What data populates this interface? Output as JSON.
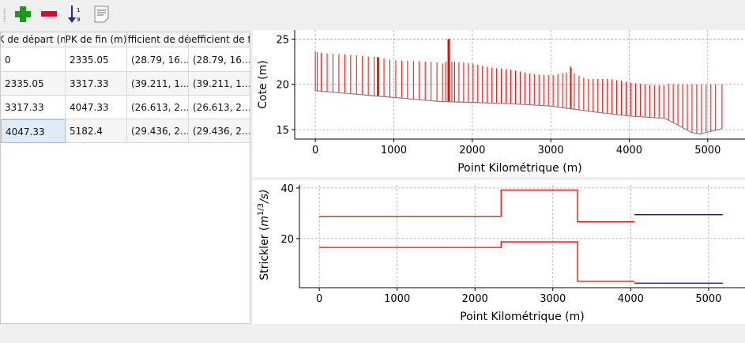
{
  "toolbar": {
    "add_icon": "plus-icon",
    "remove_icon": "minus-icon",
    "sort_icon": "sort-ascending-icon",
    "edit_icon": "document-icon"
  },
  "table": {
    "headers": [
      "PK de départ (m)",
      "PK de fin (m)",
      "Coefficient de début",
      "Coefficient de fin"
    ],
    "rows": [
      [
        "0",
        "2335.05",
        "(28.79, 16…",
        "(28.79, 16…"
      ],
      [
        "2335.05",
        "3317.33",
        "(39.211, 1…",
        "(39.211, 1…"
      ],
      [
        "3317.33",
        "4047.33",
        "(26.613, 2…",
        "(26.613, 2…"
      ],
      [
        "4047.33",
        "5182.4",
        "(29.436, 2…",
        "(29.436, 2…"
      ]
    ],
    "selected_row": 3
  },
  "chart_data": [
    {
      "type": "line",
      "xlabel": "Point Kilométrique (m)",
      "ylabel": "Cote (m)",
      "xlim": [
        -263,
        5475
      ],
      "ylim": [
        13.95,
        26.0
      ],
      "xticks": [
        "0",
        "1000",
        "2000",
        "3000",
        "4000",
        "5000"
      ],
      "yticks": [
        "15",
        "20",
        "25"
      ],
      "grid": true,
      "colors": {
        "sections": "#ff0000",
        "bed": "#808080"
      },
      "bed_profile": [
        [
          0,
          19.3
        ],
        [
          400,
          19.0
        ],
        [
          800,
          18.7
        ],
        [
          1200,
          18.4
        ],
        [
          1600,
          18.1
        ],
        [
          2000,
          18.0
        ],
        [
          2500,
          17.85
        ],
        [
          3000,
          17.6
        ],
        [
          3250,
          17.3
        ],
        [
          3600,
          16.9
        ],
        [
          4000,
          16.5
        ],
        [
          4450,
          16.25
        ],
        [
          4600,
          15.6
        ],
        [
          4800,
          14.65
        ],
        [
          4900,
          14.5
        ],
        [
          5182,
          15.1
        ]
      ],
      "top_profile": [
        [
          0,
          23.6
        ],
        [
          100,
          23.45
        ],
        [
          400,
          23.3
        ],
        [
          800,
          23.0
        ],
        [
          1000,
          22.65
        ],
        [
          1500,
          22.5
        ],
        [
          1620,
          22.3
        ],
        [
          1660,
          22.5
        ],
        [
          1680,
          25.0
        ],
        [
          1720,
          25.0
        ],
        [
          1740,
          22.5
        ],
        [
          1800,
          22.5
        ],
        [
          2000,
          22.3
        ],
        [
          2200,
          21.9
        ],
        [
          2500,
          21.6
        ],
        [
          2800,
          21.1
        ],
        [
          3000,
          21.0
        ],
        [
          3200,
          21.3
        ],
        [
          3250,
          22.0
        ],
        [
          3300,
          21.2
        ],
        [
          3450,
          20.6
        ],
        [
          3750,
          20.6
        ],
        [
          4000,
          20.2
        ],
        [
          4300,
          19.9
        ],
        [
          4450,
          19.9
        ],
        [
          4500,
          20.05
        ],
        [
          4700,
          20.0
        ],
        [
          5182,
          20.0
        ]
      ],
      "section_pk": [
        0,
        25,
        75,
        150,
        225,
        300,
        375,
        450,
        525,
        600,
        675,
        750,
        790,
        800,
        810,
        875,
        950,
        1025,
        1100,
        1175,
        1250,
        1325,
        1400,
        1475,
        1550,
        1620,
        1660,
        1690,
        1700,
        1710,
        1740,
        1775,
        1830,
        1890,
        1950,
        2010,
        2070,
        2130,
        2190,
        2250,
        2310,
        2370,
        2430,
        2490,
        2550,
        2610,
        2670,
        2730,
        2790,
        2850,
        2910,
        2970,
        3030,
        3090,
        3150,
        3200,
        3250,
        3260,
        3300,
        3360,
        3420,
        3480,
        3540,
        3600,
        3660,
        3720,
        3780,
        3840,
        3900,
        3960,
        4020,
        4080,
        4140,
        4200,
        4260,
        4320,
        4380,
        4440,
        4500,
        4560,
        4620,
        4680,
        4740,
        4800,
        4860,
        4920,
        4980,
        5040,
        5100,
        5182
      ]
    },
    {
      "type": "line",
      "xlabel": "Point Kilométrique (m)",
      "ylabel": "Strickler (m^{1/3}/s)",
      "ylabel_parts": [
        "Strickler (",
        "m",
        "1/3",
        "/s)"
      ],
      "xlim": [
        -255,
        5468
      ],
      "ylim": [
        0.6,
        41.2
      ],
      "xticks": [
        "0",
        "1000",
        "2000",
        "3000",
        "4000",
        "5000"
      ],
      "yticks": [
        "20",
        "40"
      ],
      "grid": true,
      "series": [
        {
          "color": "#ff0000",
          "steps": [
            [
              0,
              2335.05,
              28.79
            ],
            [
              2335.05,
              3317.33,
              39.211
            ],
            [
              3317.33,
              4047.33,
              26.613
            ]
          ]
        },
        {
          "color": "#ff0000",
          "steps": [
            [
              0,
              2335.05,
              16.5
            ],
            [
              2335.05,
              3317.33,
              18.7
            ],
            [
              3317.33,
              4047.33,
              3.1
            ]
          ]
        },
        {
          "color": "#0000ff",
          "steps": [
            [
              4047.33,
              5182.4,
              29.436
            ]
          ]
        },
        {
          "color": "#0000ff",
          "steps": [
            [
              4047.33,
              5182.4,
              2.4
            ]
          ]
        }
      ]
    }
  ]
}
